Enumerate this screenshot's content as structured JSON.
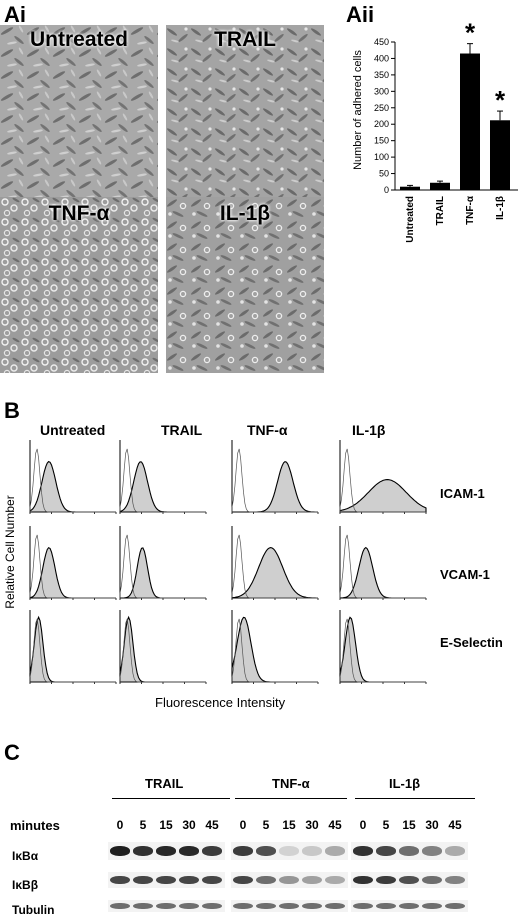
{
  "panel_ai": {
    "letter": "Ai",
    "images": [
      {
        "label": "Untreated"
      },
      {
        "label": "TRAIL"
      },
      {
        "label": "TNF-α"
      },
      {
        "label": "IL-1β"
      }
    ]
  },
  "chart_data": {
    "type": "bar",
    "title": "Aii",
    "ylabel": "Number of adhered cells",
    "categories": [
      "Untreated",
      "TRAIL",
      "TNF-α",
      "IL-1β"
    ],
    "values": [
      10,
      22,
      415,
      212
    ],
    "errors": [
      4,
      5,
      30,
      28
    ],
    "significance": [
      "",
      "",
      "*",
      "*"
    ],
    "ylim": [
      0,
      450
    ],
    "yticks": [
      0,
      50,
      100,
      150,
      200,
      250,
      300,
      350,
      400,
      450
    ],
    "bar_color": "#000000"
  },
  "panel_b": {
    "letter": "B",
    "columns": [
      "Untreated",
      "TRAIL",
      "TNF-α",
      "IL-1β"
    ],
    "rows": [
      "ICAM-1",
      "VCAM-1",
      "E-Selectin"
    ],
    "ylabel": "Relative Cell Number",
    "xlabel": "Fluorescence Intensity"
  },
  "panel_c": {
    "letter": "C",
    "groups": [
      "TRAIL",
      "TNF-α",
      "IL-1β"
    ],
    "minutes_label": "minutes",
    "minutes": [
      "0",
      "5",
      "15",
      "30",
      "45"
    ],
    "rows": [
      "IκBα",
      "IκBβ",
      "Tubulin"
    ]
  }
}
